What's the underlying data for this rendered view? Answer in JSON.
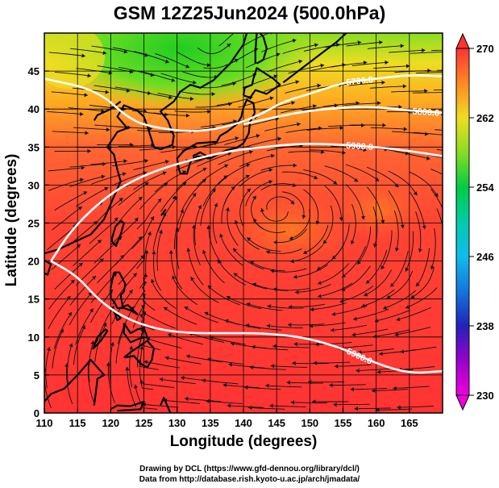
{
  "title": "GSM 12Z25Jun2024 (500.0hPa)",
  "x_axis": {
    "label": "Longitude (degrees)",
    "range": [
      110,
      170
    ],
    "ticks": [
      "110",
      "115",
      "120",
      "125",
      "130",
      "135",
      "140",
      "145",
      "150",
      "155",
      "160",
      "165"
    ]
  },
  "y_axis": {
    "label": "Latitude  (degrees)",
    "range": [
      0,
      50
    ],
    "ticks": [
      "0",
      "5",
      "10",
      "15",
      "20",
      "25",
      "30",
      "35",
      "40",
      "45"
    ]
  },
  "colorbar": {
    "range": [
      230,
      270
    ],
    "ticks": [
      "230",
      "238",
      "246",
      "254",
      "262",
      "270"
    ],
    "colors": [
      "#ee00dd",
      "#9900cc",
      "#2222bb",
      "#1199ee",
      "#00ccbb",
      "#00cc44",
      "#88dd22",
      "#eedd22",
      "#ff8822",
      "#ff3333",
      "#ee4455"
    ]
  },
  "contours": [
    {
      "label": "5700.0",
      "lon": [
        110,
        118,
        123,
        127,
        132,
        137,
        142,
        146,
        150,
        155,
        160,
        165,
        170
      ],
      "lat": [
        44,
        42.5,
        38.5,
        37.5,
        37,
        37.5,
        39,
        41,
        42,
        43.5,
        44,
        44.5,
        44.3
      ]
    },
    {
      "label": "5800.0",
      "lon": [
        140,
        145,
        150,
        155,
        160,
        165,
        170
      ],
      "lat": [
        38,
        39,
        39.8,
        40.2,
        40.3,
        39.8,
        39.5
      ]
    },
    {
      "label": "5900.0",
      "lon": [
        111,
        114,
        118,
        122,
        127,
        133,
        138,
        143,
        149,
        155,
        160,
        165,
        170
      ],
      "lat": [
        20,
        24,
        27.5,
        30,
        32,
        33.5,
        34.5,
        35,
        35.5,
        35.3,
        35,
        34.5,
        33.8
      ]
    },
    {
      "label": "5900.0",
      "lon": [
        111,
        115,
        118,
        122,
        127,
        132,
        137,
        143,
        149,
        155,
        160,
        165,
        170
      ],
      "lat": [
        20,
        18,
        15,
        12.5,
        11,
        10.5,
        10.5,
        10.5,
        10,
        8.5,
        6.5,
        5.2,
        5.5
      ]
    }
  ],
  "labels": {
    "credit_line1": "Drawing by DCL (https://www.gfd-dennou.org/library/dcl/)",
    "credit_line2": "Data from http://database.rish.kyoto-u.ac.jp/arch/jmadata/"
  }
}
